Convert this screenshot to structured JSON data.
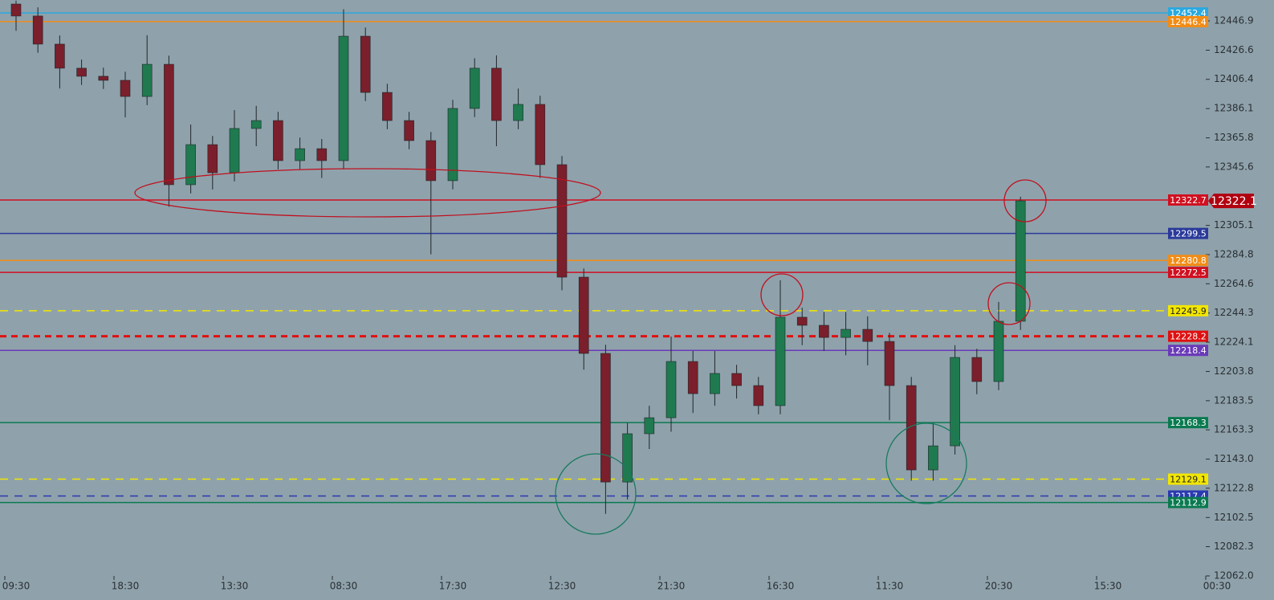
{
  "chart_data": {
    "type": "candlestick",
    "background": "#8fa2ab",
    "up_color": "#1f7a4f",
    "down_color": "#7a1f2b",
    "categories": [
      "09:30",
      null,
      null,
      null,
      null,
      "18:30",
      null,
      null,
      null,
      null,
      "13:30",
      null,
      null,
      null,
      null,
      "08:30",
      null,
      null,
      null,
      null,
      "17:30",
      null,
      null,
      null,
      null,
      "12:30",
      null,
      null,
      null,
      null,
      "21:30",
      null,
      null,
      null,
      null,
      "16:30",
      null,
      null,
      null,
      null,
      "11:30",
      null,
      null,
      null,
      null,
      "20:30",
      null,
      null,
      null,
      null,
      "15:30",
      null,
      null,
      null,
      null,
      "00:30"
    ],
    "open": [
      12458.6,
      12450.3,
      12430.8,
      12414.1,
      12408.5,
      12405.7,
      12394.5,
      12416.8,
      12333.3,
      12361.1,
      12341.6,
      12372.3,
      12377.8,
      12350.0,
      12358.3,
      12350.0,
      12436.3,
      12397.3,
      12377.8,
      12363.9,
      12336.1,
      12386.2,
      12414.1,
      12377.8,
      12389.0,
      12347.2,
      12269.2,
      12216.3,
      12127.1,
      12160.6,
      12171.7,
      12210.7,
      12188.4,
      12202.4,
      12194.0,
      12180.1,
      12241.4,
      12235.8,
      12227.4,
      12233.0,
      12224.6,
      12194.0,
      12135.5,
      12152.2,
      12213.5,
      12196.8,
      12238.6,
      null,
      null,
      null,
      null,
      null,
      null,
      null,
      null,
      null
    ],
    "high": [
      12461.0,
      12456.3,
      12436.8,
      12420.1,
      12414.5,
      12411.7,
      12437.0,
      12422.8,
      12375.0,
      12367.1,
      12385.0,
      12388.0,
      12383.8,
      12366.0,
      12365.0,
      12455.0,
      12442.3,
      12403.3,
      12383.8,
      12369.9,
      12392.2,
      12421.0,
      12423.0,
      12400.0,
      12395.0,
      12353.2,
      12275.2,
      12222.3,
      12168.0,
      12180.0,
      12228.0,
      12218.0,
      12218.0,
      12208.4,
      12200.0,
      12267.0,
      12248.0,
      12245.0,
      12245.0,
      12242.0,
      12230.6,
      12200.0,
      12168.0,
      12222.0,
      12219.5,
      12252.0,
      12325.0,
      null,
      null,
      null,
      null,
      null,
      null,
      null,
      null,
      null
    ],
    "low": [
      12440.0,
      12424.8,
      12400.0,
      12402.5,
      12399.7,
      12380.0,
      12388.5,
      12318.0,
      12327.3,
      12330.0,
      12335.6,
      12360.0,
      12344.0,
      12344.0,
      12338.0,
      12344.0,
      12391.3,
      12371.8,
      12357.9,
      12285.0,
      12330.1,
      12380.2,
      12360.0,
      12371.8,
      12338.0,
      12260.0,
      12205.0,
      12105.0,
      12115.0,
      12150.0,
      12162.0,
      12175.0,
      12180.0,
      12185.0,
      12174.1,
      12174.1,
      12222.0,
      12218.0,
      12215.0,
      12208.0,
      12170.0,
      12128.0,
      12128.0,
      12146.2,
      12188.0,
      12190.8,
      12232.6,
      null,
      null,
      null,
      null,
      null,
      null,
      null,
      null,
      null
    ],
    "close": [
      12450.3,
      12430.8,
      12414.1,
      12408.5,
      12405.7,
      12394.5,
      12416.8,
      12333.3,
      12361.1,
      12341.6,
      12372.3,
      12377.8,
      12350.0,
      12358.3,
      12350.0,
      12436.3,
      12397.3,
      12377.8,
      12363.9,
      12336.1,
      12386.2,
      12414.1,
      12377.8,
      12389.0,
      12347.2,
      12269.2,
      12216.3,
      12127.1,
      12160.6,
      12171.7,
      12210.7,
      12188.4,
      12202.4,
      12194.0,
      12180.1,
      12241.4,
      12235.8,
      12227.4,
      12233.0,
      12224.6,
      12194.0,
      12135.5,
      12152.2,
      12213.5,
      12196.8,
      12238.6,
      12322.1,
      null,
      null,
      null,
      null,
      null,
      null,
      null,
      null,
      null
    ],
    "ylim": [
      12062.0,
      12461.4
    ],
    "yticks": [
      12446.9,
      12426.6,
      12406.4,
      12386.1,
      12365.8,
      12345.6,
      12305.1,
      12284.8,
      12264.6,
      12244.3,
      12224.1,
      12203.8,
      12183.5,
      12163.3,
      {
        "value": 12143.0,
        "label": "12143.0"
      },
      12122.8,
      12102.5,
      12082.3,
      {
        "value": 12062.0,
        "label": "12062.0"
      }
    ],
    "levels": [
      {
        "value": 12452.4,
        "color": "#29a9e0",
        "style": "solid"
      },
      {
        "value": 12446.4,
        "color": "#f28c16",
        "style": "solid"
      },
      {
        "value": 12322.7,
        "color": "#d01020",
        "style": "solid"
      },
      {
        "value": 12299.5,
        "color": "#2a3a9a",
        "style": "solid"
      },
      {
        "value": 12280.8,
        "color": "#f28c16",
        "style": "solid"
      },
      {
        "value": 12272.5,
        "color": "#d01020",
        "style": "solid"
      },
      {
        "value": 12245.9,
        "color": "#f2e600",
        "style": "dashed"
      },
      {
        "value": 12228.2,
        "color": "#e01010",
        "style": "dashed-bold"
      },
      {
        "value": 12218.4,
        "color": "#6a3ab8",
        "style": "solid"
      },
      {
        "value": 12168.3,
        "color": "#0a7a50",
        "style": "solid"
      },
      {
        "value": 12129.1,
        "color": "#f2e600",
        "style": "dashed"
      },
      {
        "value": 12117.4,
        "color": "#2a3ab0",
        "style": "dashed"
      },
      {
        "value": 12112.9,
        "color": "#0a7a50",
        "style": "solid"
      }
    ],
    "current_price": 12322.1,
    "current_price_color": "#b00010"
  }
}
